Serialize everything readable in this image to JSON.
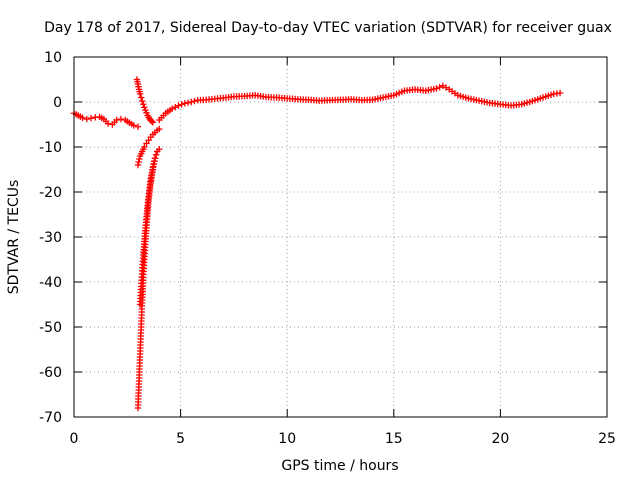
{
  "chart_data": {
    "type": "scatter",
    "title": "Day 178 of 2017, Sidereal Day-to-day VTEC variation (SDTVAR) for receiver guax",
    "xlabel": "GPS time / hours",
    "ylabel": "SDTVAR / TECUs",
    "xlim": [
      0,
      25
    ],
    "ylim": [
      -70,
      10
    ],
    "xticks": [
      0,
      5,
      10,
      15,
      20,
      25
    ],
    "yticks": [
      10,
      0,
      -10,
      -20,
      -30,
      -40,
      -50,
      -60,
      -70
    ],
    "grid": true,
    "marker": "+",
    "colors": {
      "series": "#ff0000",
      "grid": "#a0a0a0",
      "axis": "#000000"
    },
    "series": [
      {
        "name": "SDTVAR",
        "segments": [
          {
            "x": [
              0.0,
              0.2,
              0.4,
              0.6,
              0.8,
              1.0,
              1.2,
              1.4,
              1.6,
              1.8,
              2.0,
              2.2,
              2.4,
              2.6,
              2.8,
              3.0
            ],
            "y": [
              -2.5,
              -3.0,
              -3.5,
              -3.8,
              -3.6,
              -3.4,
              -3.3,
              -3.8,
              -4.8,
              -5.0,
              -4.0,
              -3.8,
              -4.0,
              -4.6,
              -5.2,
              -5.5
            ]
          },
          {
            "x": [
              2.95,
              3.0,
              3.05,
              3.1,
              3.15,
              3.2,
              3.25,
              3.3,
              3.35,
              3.4,
              3.45,
              3.5,
              3.55,
              3.6,
              3.65,
              3.7
            ],
            "y": [
              5.0,
              4.0,
              2.8,
              1.8,
              1.0,
              0.2,
              -0.5,
              -1.2,
              -1.8,
              -2.4,
              -3.0,
              -3.4,
              -3.8,
              -4.1,
              -4.3,
              -4.5
            ]
          },
          {
            "x": [
              3.0,
              3.05,
              3.1,
              3.15,
              3.2,
              3.25,
              3.3,
              3.35,
              3.4,
              3.5,
              3.6,
              3.7,
              3.8,
              3.9,
              4.0
            ],
            "y": [
              -68.0,
              -62.0,
              -56.0,
              -50.0,
              -44.0,
              -39.0,
              -35.0,
              -31.0,
              -28.0,
              -22.0,
              -18.0,
              -15.0,
              -12.5,
              -11.0,
              -10.5
            ]
          },
          {
            "x": [
              3.0,
              3.1,
              3.2,
              3.3,
              3.4,
              3.5,
              3.6,
              3.7,
              3.8,
              3.9,
              4.0
            ],
            "y": [
              -14.0,
              -12.0,
              -11.0,
              -10.0,
              -9.2,
              -8.5,
              -7.8,
              -7.2,
              -6.8,
              -6.3,
              -6.0
            ]
          },
          {
            "x": [
              3.1,
              3.15,
              3.2,
              3.25,
              3.3,
              3.35,
              3.4,
              3.45,
              3.5,
              3.55,
              3.6,
              3.7,
              3.8,
              3.9
            ],
            "y": [
              -45.0,
              -41.0,
              -37.5,
              -34.0,
              -31.0,
              -28.0,
              -25.5,
              -23.0,
              -21.0,
              -19.0,
              -17.0,
              -14.5,
              -12.5,
              -11.0
            ]
          },
          {
            "x": [
              4.0,
              4.3,
              4.6,
              4.9,
              5.2,
              5.5,
              5.8,
              6.2,
              6.6,
              7.0,
              7.5,
              8.0,
              8.5,
              9.0,
              9.5,
              10.0,
              10.5,
              11.0,
              11.5,
              12.0,
              12.5,
              13.0,
              13.5,
              14.0,
              14.5,
              15.0,
              15.5,
              16.0,
              16.5,
              17.0,
              17.3,
              17.6,
              18.0,
              18.5,
              19.0,
              19.5,
              20.0,
              20.5,
              21.0,
              21.5,
              22.0,
              22.5,
              22.8
            ],
            "y": [
              -4.0,
              -2.5,
              -1.5,
              -0.8,
              -0.3,
              0.0,
              0.4,
              0.5,
              0.7,
              0.9,
              1.2,
              1.3,
              1.5,
              1.1,
              1.0,
              0.8,
              0.6,
              0.5,
              0.3,
              0.4,
              0.5,
              0.6,
              0.4,
              0.5,
              1.0,
              1.5,
              2.5,
              2.8,
              2.5,
              3.0,
              3.6,
              2.8,
              1.5,
              0.8,
              0.3,
              -0.2,
              -0.5,
              -0.8,
              -0.5,
              0.2,
              1.0,
              1.8,
              2.0
            ]
          }
        ]
      }
    ]
  }
}
